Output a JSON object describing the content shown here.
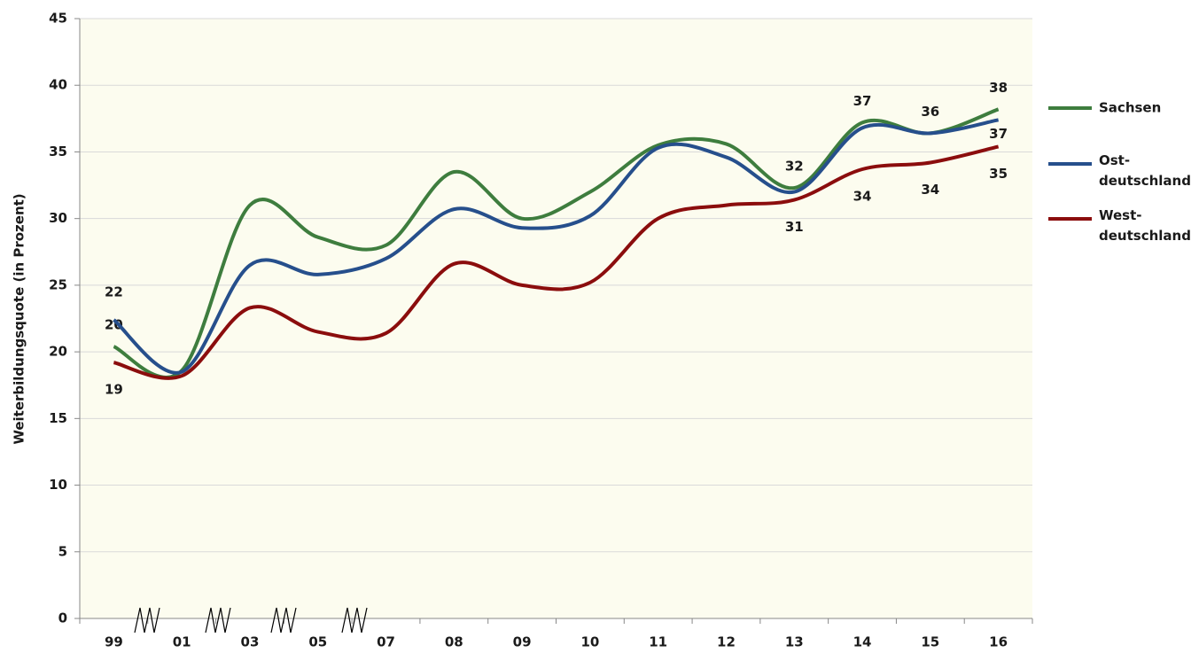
{
  "chart_data": {
    "type": "line",
    "y_label": "Weiterbildungsquote  (in Prozent)",
    "categories": [
      "99",
      "01",
      "03",
      "05",
      "07",
      "08",
      "09",
      "10",
      "11",
      "12",
      "13",
      "14",
      "15",
      "16"
    ],
    "series": [
      {
        "name": "Sachsen",
        "color": "#3e7d3e",
        "values": [
          20.4,
          18.6,
          31.0,
          28.6,
          28.0,
          33.5,
          30.0,
          32.0,
          35.5,
          35.6,
          32.3,
          37.2,
          36.4,
          38.2
        ],
        "value_labels": [
          "20",
          null,
          null,
          null,
          null,
          null,
          null,
          null,
          null,
          null,
          "32",
          "37",
          "36",
          "38"
        ]
      },
      {
        "name": "Ost-deutschland",
        "color": "#264f8c",
        "values": [
          22.4,
          18.5,
          26.5,
          25.8,
          27.0,
          30.7,
          29.3,
          30.2,
          35.3,
          34.6,
          32.0,
          36.8,
          36.4,
          37.4
        ],
        "value_labels": [
          "22",
          null,
          null,
          null,
          null,
          null,
          null,
          null,
          null,
          null,
          null,
          null,
          null,
          "37"
        ]
      },
      {
        "name": "West-deutschland",
        "color": "#8b0d0d",
        "values": [
          19.2,
          18.2,
          23.3,
          21.5,
          21.4,
          26.6,
          25.0,
          25.2,
          30.0,
          31.0,
          31.4,
          33.7,
          34.2,
          35.4
        ],
        "value_labels": [
          "19",
          null,
          null,
          null,
          null,
          null,
          null,
          null,
          null,
          null,
          "31",
          "34",
          "34",
          "35"
        ]
      }
    ],
    "ylim": [
      0,
      45
    ],
    "yticks": [
      0,
      5,
      10,
      15,
      20,
      25,
      30,
      35,
      40,
      45
    ],
    "grid": true,
    "legend": "right"
  }
}
